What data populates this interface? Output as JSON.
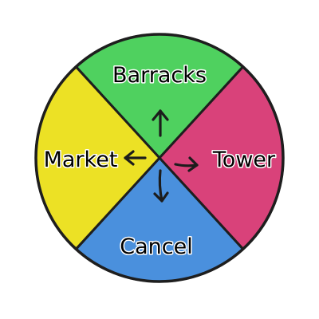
{
  "radial_menu": {
    "options": [
      {
        "id": "barracks",
        "label": "Barracks",
        "direction": "up",
        "color": "#4fd15f"
      },
      {
        "id": "tower",
        "label": "Tower",
        "direction": "right",
        "color": "#d9427a"
      },
      {
        "id": "cancel",
        "label": "Cancel",
        "direction": "down",
        "color": "#4a90dd"
      },
      {
        "id": "market",
        "label": "Market",
        "direction": "left",
        "color": "#ece125"
      }
    ],
    "outline_color": "#1e1e1e",
    "icons": [
      "arrow-up-icon",
      "arrow-right-icon",
      "arrow-down-icon",
      "arrow-left-icon"
    ]
  }
}
